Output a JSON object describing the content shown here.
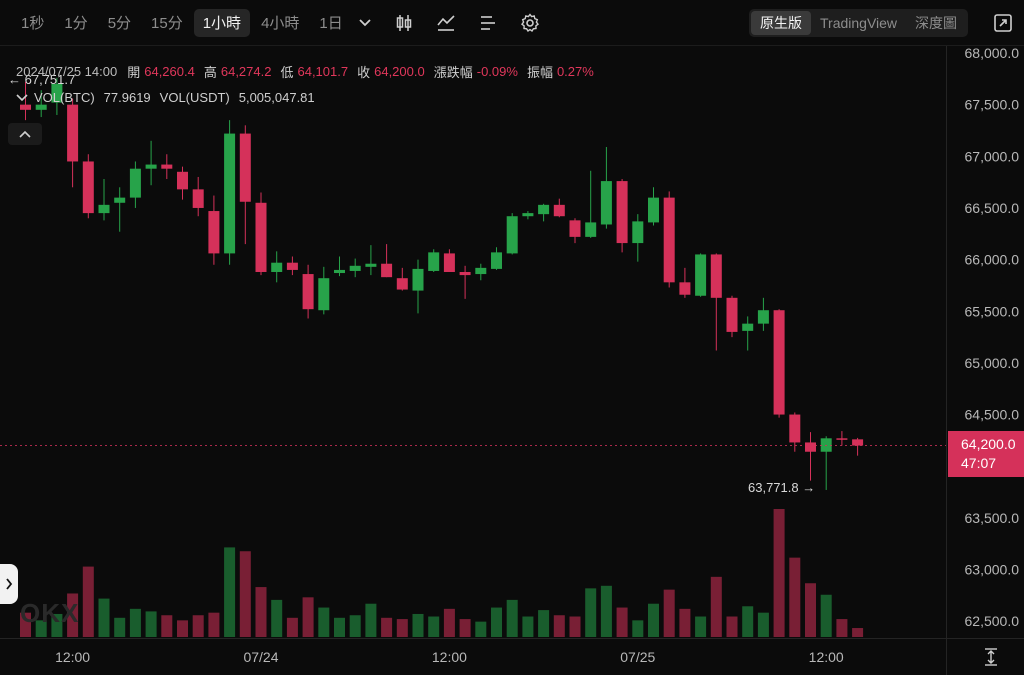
{
  "toolbar": {
    "timeframes": [
      "1秒",
      "1分",
      "5分",
      "15分",
      "1小時",
      "4小時",
      "1日"
    ],
    "active_timeframe": "1小時",
    "views": [
      "原生版",
      "TradingView",
      "深度圖"
    ],
    "active_view": "原生版"
  },
  "ohlc": {
    "datetime": "2024/07/25 14:00",
    "open_label": "開",
    "open": "64,260.4",
    "high_label": "高",
    "high": "64,274.2",
    "low_label": "低",
    "low": "64,101.7",
    "close_label": "收",
    "close": "64,200.0",
    "change_label": "漲跌幅",
    "change": "-0.09%",
    "amplitude_label": "振幅",
    "amplitude": "0.27%"
  },
  "volume": {
    "btc_label": "VOL(BTC)",
    "btc_value": "77.9619",
    "usdt_label": "VOL(USDT)",
    "usdt_value": "5,005,047.81"
  },
  "annotations": {
    "high_marker": "67,751.7",
    "low_marker": "63,771.8"
  },
  "current_price": {
    "price": "64,200.0",
    "countdown": "47:07"
  },
  "watermark": "OKX",
  "colors": {
    "up": "#27a34a",
    "down": "#d5315a",
    "background": "#0b0b0b"
  },
  "chart_data": {
    "type": "candlestick",
    "y_ticks": [
      "68,000.0",
      "67,500.0",
      "67,000.0",
      "66,500.0",
      "66,000.0",
      "65,500.0",
      "65,000.0",
      "64,500.0",
      "63,500.0",
      "63,000.0",
      "62,500.0"
    ],
    "x_ticks": [
      {
        "i": 3,
        "label": "12:00"
      },
      {
        "i": 15,
        "label": "07/24"
      },
      {
        "i": 27,
        "label": "12:00"
      },
      {
        "i": 39,
        "label": "07/25"
      },
      {
        "i": 51,
        "label": "12:00"
      }
    ],
    "candles": [
      [
        67500,
        67720,
        67350,
        67450
      ],
      [
        67450,
        67640,
        67380,
        67500
      ],
      [
        67520,
        67760,
        67400,
        67700
      ],
      [
        67500,
        67560,
        66700,
        66950
      ],
      [
        66950,
        67020,
        66400,
        66450
      ],
      [
        66450,
        66780,
        66380,
        66530
      ],
      [
        66550,
        66700,
        66270,
        66600
      ],
      [
        66600,
        66950,
        66500,
        66880
      ],
      [
        66880,
        67150,
        66720,
        66920
      ],
      [
        66920,
        67020,
        66780,
        66880
      ],
      [
        66850,
        66900,
        66580,
        66680
      ],
      [
        66680,
        66800,
        66420,
        66500
      ],
      [
        66470,
        66620,
        65950,
        66060
      ],
      [
        66060,
        67350,
        65950,
        67220
      ],
      [
        67220,
        67300,
        66150,
        66560
      ],
      [
        66550,
        66650,
        65850,
        65880
      ],
      [
        65880,
        66080,
        65780,
        65970
      ],
      [
        65970,
        66030,
        65850,
        65900
      ],
      [
        65860,
        65950,
        65430,
        65520
      ],
      [
        65510,
        65930,
        65470,
        65820
      ],
      [
        65870,
        66030,
        65840,
        65900
      ],
      [
        65890,
        66010,
        65830,
        65940
      ],
      [
        65930,
        66140,
        65850,
        65960
      ],
      [
        65960,
        66150,
        65830,
        65830
      ],
      [
        65820,
        65920,
        65700,
        65710
      ],
      [
        65700,
        66000,
        65480,
        65910
      ],
      [
        65890,
        66100,
        65880,
        66070
      ],
      [
        66060,
        66100,
        65880,
        65880
      ],
      [
        65880,
        65940,
        65620,
        65850
      ],
      [
        65860,
        65960,
        65800,
        65920
      ],
      [
        65910,
        66120,
        65900,
        66070
      ],
      [
        66060,
        66450,
        66050,
        66420
      ],
      [
        66420,
        66470,
        66390,
        66450
      ],
      [
        66440,
        66540,
        66370,
        66530
      ],
      [
        66530,
        66590,
        66410,
        66420
      ],
      [
        66380,
        66400,
        66160,
        66220
      ],
      [
        66220,
        66860,
        66210,
        66360
      ],
      [
        66340,
        67090,
        66300,
        66760
      ],
      [
        66760,
        66780,
        66070,
        66160
      ],
      [
        66160,
        66440,
        65980,
        66370
      ],
      [
        66360,
        66700,
        66330,
        66600
      ],
      [
        66600,
        66660,
        65730,
        65780
      ],
      [
        65780,
        65920,
        65630,
        65660
      ],
      [
        65650,
        66060,
        65640,
        66050
      ],
      [
        66050,
        66060,
        65120,
        65630
      ],
      [
        65630,
        65650,
        65250,
        65300
      ],
      [
        65310,
        65450,
        65120,
        65380
      ],
      [
        65380,
        65630,
        65310,
        65510
      ],
      [
        65510,
        65520,
        64470,
        64500
      ],
      [
        64500,
        64520,
        64140,
        64230
      ],
      [
        64230,
        64330,
        63860,
        64140
      ],
      [
        64140,
        64290,
        63770,
        64270
      ],
      [
        64270,
        64340,
        64200,
        64260
      ],
      [
        64260,
        64274,
        64102,
        64200
      ]
    ],
    "volumes": [
      0.19,
      0.13,
      0.18,
      0.34,
      0.55,
      0.3,
      0.15,
      0.22,
      0.2,
      0.17,
      0.13,
      0.17,
      0.19,
      0.7,
      0.67,
      0.39,
      0.29,
      0.15,
      0.31,
      0.23,
      0.15,
      0.17,
      0.26,
      0.15,
      0.14,
      0.18,
      0.16,
      0.22,
      0.14,
      0.12,
      0.23,
      0.29,
      0.16,
      0.21,
      0.17,
      0.16,
      0.38,
      0.4,
      0.23,
      0.13,
      0.26,
      0.37,
      0.22,
      0.16,
      0.47,
      0.16,
      0.24,
      0.19,
      1.0,
      0.62,
      0.42,
      0.33,
      0.14,
      0.07
    ]
  }
}
